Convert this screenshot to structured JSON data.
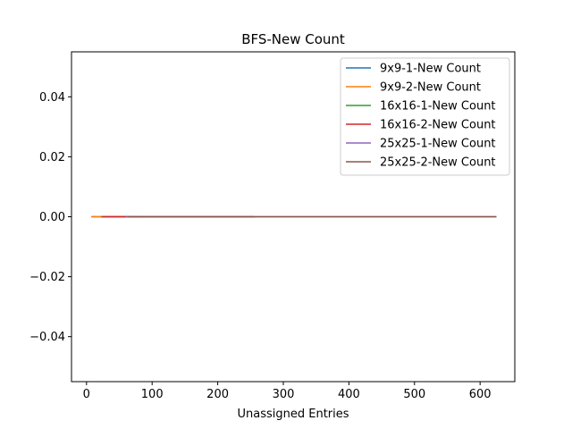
{
  "chart_data": {
    "type": "line",
    "title": "BFS-New Count",
    "xlabel": "Unassigned Entries",
    "ylabel": "",
    "xlim": [
      -22.9,
      652.9
    ],
    "ylim": [
      -0.055,
      0.055
    ],
    "xticks": [
      0,
      100,
      200,
      300,
      400,
      500,
      600
    ],
    "yticks": [
      -0.04,
      -0.02,
      0.0,
      0.02,
      0.04
    ],
    "ytick_labels": [
      "−0.04",
      "−0.02",
      "0.00",
      "0.02",
      "0.04"
    ],
    "grid": false,
    "legend_position": "top-right",
    "series": [
      {
        "name": "9x9-1-New Count",
        "color": "#1f77b4",
        "x": [
          8,
          81
        ],
        "y": [
          0,
          0
        ]
      },
      {
        "name": "9x9-2-New Count",
        "color": "#ff7f0e",
        "x": [
          7,
          81
        ],
        "y": [
          0,
          0
        ]
      },
      {
        "name": "16x16-1-New Count",
        "color": "#2ca02c",
        "x": [
          22,
          256
        ],
        "y": [
          0,
          0
        ]
      },
      {
        "name": "16x16-2-New Count",
        "color": "#d62728",
        "x": [
          24,
          256
        ],
        "y": [
          0,
          0
        ]
      },
      {
        "name": "25x25-1-New Count",
        "color": "#9467bd",
        "x": [
          60,
          625
        ],
        "y": [
          0,
          0
        ]
      },
      {
        "name": "25x25-2-New Count",
        "color": "#8c564b",
        "x": [
          62,
          625
        ],
        "y": [
          0,
          0
        ]
      }
    ]
  }
}
